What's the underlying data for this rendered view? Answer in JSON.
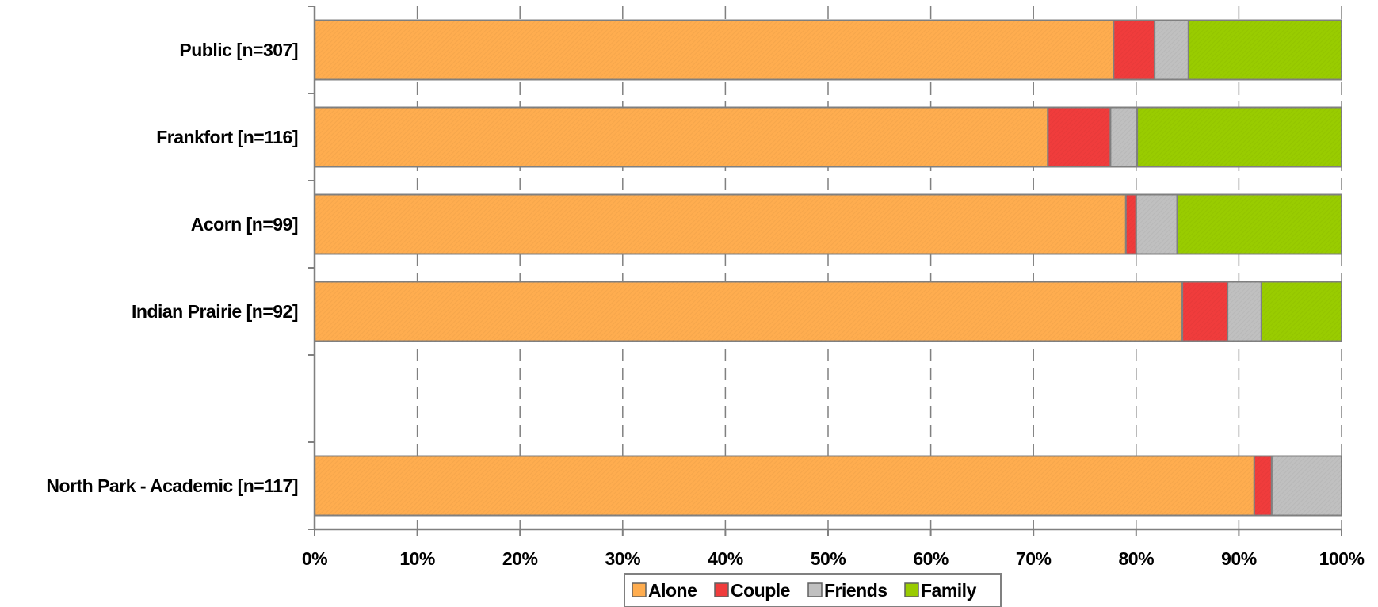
{
  "chart_data": {
    "type": "bar",
    "orientation": "horizontal",
    "stacked": true,
    "normalized_percent": true,
    "categories": [
      "Public [n=307]",
      "Frankfort [n=116]",
      "Acorn [n=99]",
      "Indian Prairie [n=92]",
      "",
      "North Park - Academic [n=117]"
    ],
    "series": [
      {
        "name": "Alone",
        "color": "#FFAD4F",
        "values": [
          77.8,
          71.4,
          79.0,
          84.5,
          null,
          91.5
        ]
      },
      {
        "name": "Couple",
        "color": "#F03C3C",
        "values": [
          4.0,
          6.1,
          1.0,
          4.4,
          null,
          1.7
        ]
      },
      {
        "name": "Friends",
        "color": "#C0C0C0",
        "values": [
          3.3,
          2.6,
          4.0,
          3.3,
          null,
          6.8
        ]
      },
      {
        "name": "Family",
        "color": "#99CC00",
        "values": [
          14.9,
          19.9,
          16.0,
          7.8,
          null,
          0.0
        ]
      }
    ],
    "xlim": [
      0,
      100
    ],
    "x_ticks": [
      "0%",
      "10%",
      "20%",
      "30%",
      "40%",
      "50%",
      "60%",
      "70%",
      "80%",
      "90%",
      "100%"
    ],
    "grid": "vertical dashed",
    "legend": {
      "position": "bottom",
      "items": [
        "Alone",
        "Couple",
        "Friends",
        "Family"
      ]
    },
    "title": "",
    "xlabel": "",
    "ylabel": ""
  }
}
